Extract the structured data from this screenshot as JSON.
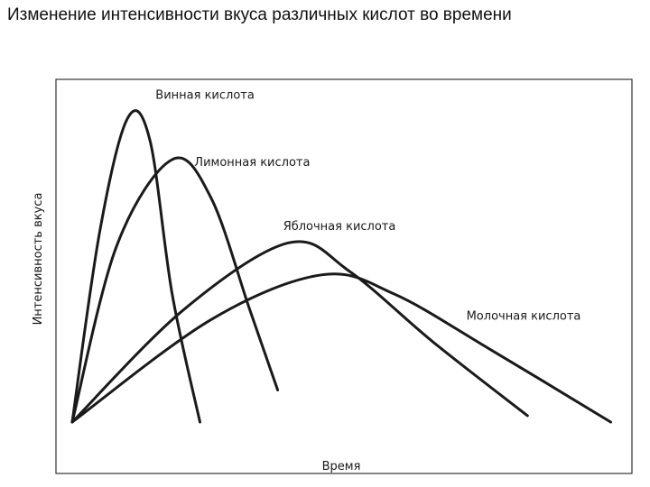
{
  "page": {
    "title": "Изменение интенсивности вкуса различных кислот во времени"
  },
  "chart_data": {
    "type": "line",
    "title": "Изменение интенсивности вкуса различных кислот во времени",
    "xlabel": "Время",
    "ylabel": "Интенсивность вкуса",
    "xlim": [
      0,
      100
    ],
    "ylim": [
      0,
      100
    ],
    "grid": false,
    "legend": "inline labels",
    "colors": {
      "line": "#1a1a1a",
      "frame": "#333333"
    },
    "series": [
      {
        "name": "Винная кислота",
        "points": [
          [
            0,
            0
          ],
          [
            5,
            60
          ],
          [
            10,
            95
          ],
          [
            14,
            88
          ],
          [
            18,
            40
          ],
          [
            23,
            0
          ]
        ],
        "label_at": [
          15,
          101
        ]
      },
      {
        "name": "Лимонная кислота",
        "points": [
          [
            0,
            0
          ],
          [
            8,
            55
          ],
          [
            18,
            82
          ],
          [
            25,
            70
          ],
          [
            32,
            35
          ],
          [
            37,
            10
          ]
        ],
        "label_at": [
          22,
          80
        ]
      },
      {
        "name": "Яблочная кислота",
        "points": [
          [
            0,
            0
          ],
          [
            20,
            35
          ],
          [
            39,
            56
          ],
          [
            50,
            47
          ],
          [
            65,
            25
          ],
          [
            82,
            2
          ]
        ],
        "label_at": [
          38,
          60
        ]
      },
      {
        "name": "Молочная кислота",
        "points": [
          [
            0,
            0
          ],
          [
            25,
            32
          ],
          [
            45,
            46
          ],
          [
            58,
            40
          ],
          [
            75,
            23
          ],
          [
            97,
            0
          ]
        ],
        "label_at": [
          71,
          32
        ]
      }
    ]
  }
}
